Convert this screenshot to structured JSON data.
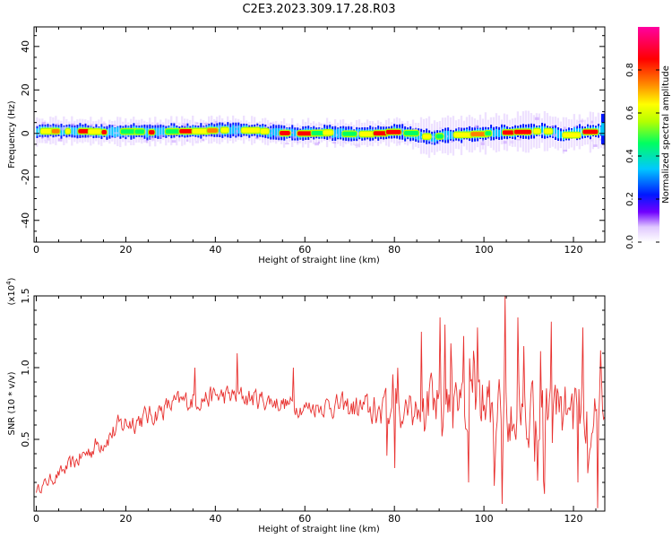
{
  "title": "C2E3.2023.309.17.28.R03",
  "chart_data": [
    {
      "type": "heatmap",
      "xlabel": "Height of straight line (km)",
      "ylabel": "Frequency (Hz)",
      "xlim": [
        -0.5,
        127
      ],
      "ylim": [
        -50,
        49
      ],
      "xticks": [
        0,
        20,
        40,
        60,
        80,
        100,
        120
      ],
      "yticks": [
        -40,
        -20,
        0,
        20,
        40
      ],
      "colorbar": {
        "label": "Normalized spectral amplitude",
        "range": [
          0,
          1
        ],
        "ticks": [
          "0.0",
          "0.2",
          "0.4",
          "0.6",
          "0.8"
        ],
        "tick_values": [
          0,
          0.2,
          0.4,
          0.6,
          0.8
        ],
        "colormap": [
          "#ffffff",
          "#e0c8ff",
          "#7000ff",
          "#0018ff",
          "#00c8ff",
          "#00ff60",
          "#b4ff00",
          "#ffff00",
          "#ff8000",
          "#ff0000",
          "#ff00a0"
        ]
      },
      "ridge": {
        "x": [
          0,
          5,
          10,
          15,
          20,
          25,
          30,
          35,
          40,
          45,
          50,
          55,
          60,
          65,
          70,
          75,
          80,
          85,
          88,
          90,
          95,
          100,
          105,
          110,
          115,
          118,
          120,
          125,
          127
        ],
        "y": [
          1,
          1,
          1,
          0.5,
          1,
          0.5,
          1,
          1,
          1.5,
          1.5,
          1,
          0,
          0,
          0.5,
          -0.5,
          0,
          1,
          -1,
          -2,
          -1,
          -0.5,
          0,
          0.5,
          1,
          1,
          -1,
          0.5,
          1,
          1
        ]
      }
    },
    {
      "type": "line",
      "xlabel": "Height of straight line (km)",
      "ylabel": "SNR (10 * v/v)",
      "y_multiplier": "(x10",
      "y_multiplier_exp": "4",
      "y_multiplier_close": ")",
      "xlim": [
        -0.5,
        127
      ],
      "ylim": [
        0,
        1.5
      ],
      "xticks": [
        0,
        20,
        40,
        60,
        80,
        100,
        120
      ],
      "yticks": [
        "0.5",
        "1.0",
        "1.5"
      ],
      "ytick_values": [
        0.5,
        1.0,
        1.5
      ],
      "series_color": "#e8302e",
      "envelope": {
        "x": [
          0,
          3,
          6,
          10,
          15,
          20,
          25,
          30,
          35,
          40,
          45,
          50,
          55,
          60,
          65,
          70,
          75,
          80,
          85,
          90,
          95,
          100,
          105,
          110,
          115,
          120,
          125,
          127
        ],
        "mean": [
          0.15,
          0.22,
          0.28,
          0.38,
          0.5,
          0.62,
          0.66,
          0.74,
          0.78,
          0.8,
          0.8,
          0.78,
          0.75,
          0.72,
          0.74,
          0.72,
          0.7,
          0.72,
          0.72,
          0.74,
          0.7,
          0.7,
          0.72,
          0.72,
          0.7,
          0.7,
          0.72,
          0.72
        ],
        "amp": [
          0.05,
          0.07,
          0.08,
          0.1,
          0.12,
          0.14,
          0.12,
          0.12,
          0.12,
          0.12,
          0.12,
          0.12,
          0.1,
          0.1,
          0.12,
          0.14,
          0.18,
          0.22,
          0.26,
          0.3,
          0.3,
          0.32,
          0.36,
          0.34,
          0.34,
          0.34,
          0.32,
          0.32
        ]
      },
      "peaks": [
        {
          "x": 44.8,
          "y": 1.1
        },
        {
          "x": 35.5,
          "y": 1.0
        },
        {
          "x": 57.5,
          "y": 1.0
        },
        {
          "x": 86,
          "y": 1.25
        },
        {
          "x": 90.3,
          "y": 1.35
        },
        {
          "x": 91.2,
          "y": 1.3
        },
        {
          "x": 95.5,
          "y": 1.22
        },
        {
          "x": 98.5,
          "y": 1.28
        },
        {
          "x": 104.8,
          "y": 1.5
        },
        {
          "x": 107.5,
          "y": 1.35
        },
        {
          "x": 115,
          "y": 1.32
        },
        {
          "x": 122,
          "y": 1.28
        },
        {
          "x": 109,
          "y": 1.15
        },
        {
          "x": 126,
          "y": 1.12
        }
      ],
      "troughs": [
        {
          "x": 104,
          "y": 0.05
        },
        {
          "x": 113.5,
          "y": 0.12
        },
        {
          "x": 125.5,
          "y": 0.02
        },
        {
          "x": 96.5,
          "y": 0.2
        },
        {
          "x": 121,
          "y": 0.2
        },
        {
          "x": 80,
          "y": 0.3
        }
      ]
    }
  ]
}
